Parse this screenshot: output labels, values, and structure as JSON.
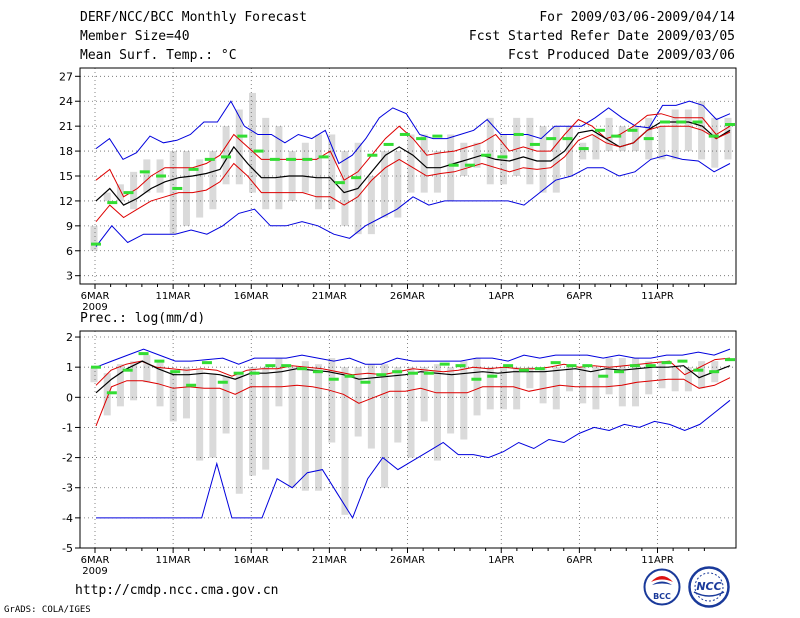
{
  "header": {
    "title": "DERF/NCC/BCC Monthly Forecast",
    "member_size": "Member Size=40",
    "top_var": "Mean Surf. Temp.: °C",
    "for_range": "For 2009/03/06-2009/04/14",
    "started": "Fcst Started Refer Date 2009/03/05",
    "produced": "Fcst Produced Date 2009/03/06"
  },
  "bottom_var": "Prec.: log(mm/d)",
  "footer": {
    "url": "http://cmdp.ncc.cma.gov.cn",
    "grads": "GrADS: COLA/IGES"
  },
  "logos": {
    "bcc": "BCC",
    "ncc": "NCC"
  },
  "colors": {
    "max_min": "#0000dd",
    "spread": "#dd0000",
    "mean": "#000000",
    "obs_bar": "#dadada",
    "marker": "#33dd33",
    "grid": "#666666"
  },
  "chart_data": [
    {
      "type": "line",
      "title": "Mean Surf. Temp.: °C",
      "ylim": [
        2,
        28
      ],
      "yticks": [
        3,
        6,
        9,
        12,
        15,
        18,
        21,
        24,
        27
      ],
      "xtick_labels": [
        "6MAR",
        "11MAR",
        "16MAR",
        "21MAR",
        "26MAR",
        "1APR",
        "6APR",
        "11APR"
      ],
      "xtick_days": [
        0,
        5,
        10,
        15,
        20,
        26,
        31,
        36
      ],
      "year_label": "2009",
      "days": 40,
      "series": [
        {
          "name": "max",
          "values": [
            18.3,
            19.5,
            17,
            17.8,
            19.8,
            19,
            19.3,
            20,
            21.5,
            21.5,
            24,
            21,
            20,
            20,
            19,
            20,
            19.5,
            20.5,
            16.5,
            17.5,
            19.5,
            22,
            23.2,
            22.5,
            20,
            19.5,
            19.5,
            20,
            20.5,
            21.8,
            20,
            20,
            20,
            19.5,
            21,
            21,
            21,
            22,
            23.2,
            22,
            21,
            20.8,
            23.5,
            23.5,
            24,
            23.5,
            21.8,
            22.5
          ]
        },
        {
          "name": "upper",
          "values": [
            14.5,
            15.8,
            12.5,
            13.5,
            15,
            16,
            16,
            16,
            16.5,
            17.5,
            20,
            18.5,
            17,
            17,
            17,
            17,
            17,
            18,
            14.5,
            15.5,
            17.5,
            19.5,
            21,
            19.5,
            17.5,
            17.8,
            18,
            18.5,
            19,
            20,
            18,
            18.5,
            18,
            18,
            20,
            21.8,
            21,
            19.5,
            20,
            21,
            22.3,
            22.5,
            22,
            22,
            22,
            20,
            21
          ]
        },
        {
          "name": "mean",
          "values": [
            12,
            13.5,
            11.5,
            12.3,
            13.5,
            14.3,
            14.8,
            15,
            15.3,
            15.8,
            18.5,
            16.5,
            14.8,
            14.8,
            15,
            15,
            14.8,
            14.8,
            13,
            13.5,
            15.5,
            17.5,
            18.5,
            17.5,
            16,
            16,
            16.5,
            17,
            17.5,
            17,
            16.8,
            17.3,
            16.8,
            16.8,
            18,
            20.2,
            20.5,
            19.5,
            18.5,
            19,
            20.5,
            21.5,
            21.5,
            21.5,
            21,
            19.5,
            20.5
          ]
        },
        {
          "name": "lower",
          "values": [
            9.5,
            11.5,
            10,
            11,
            12,
            12.5,
            13,
            13,
            13.3,
            14.3,
            16.5,
            15,
            13,
            13,
            13,
            13,
            12.5,
            12.5,
            11.5,
            12.5,
            14.5,
            16,
            17,
            16,
            15,
            15.3,
            15.5,
            16,
            16.5,
            16,
            15.5,
            16,
            15.8,
            16,
            17.3,
            19.3,
            20,
            19,
            18.5,
            19,
            20.5,
            21,
            21,
            21,
            20.5,
            19.5,
            20.3
          ]
        },
        {
          "name": "min",
          "values": [
            6.5,
            9,
            7,
            8,
            8,
            8,
            8.5,
            8,
            9,
            10.5,
            11,
            9,
            9,
            9.5,
            9,
            8,
            7.5,
            9,
            10,
            11,
            12.5,
            11.5,
            12,
            12,
            12,
            12,
            12,
            11.5,
            13,
            14.5,
            15,
            16,
            16,
            15,
            15.5,
            17,
            17.5,
            17,
            16.8,
            15.5,
            16.5
          ]
        },
        {
          "name": "bar_top",
          "values": [
            9,
            13,
            14,
            15.5,
            17,
            17,
            18,
            18,
            17,
            18,
            21,
            23,
            25,
            22,
            21,
            18,
            19,
            20,
            20,
            18,
            19,
            15,
            18,
            18,
            20,
            20,
            18,
            20,
            19,
            19,
            22,
            20,
            22,
            22,
            21,
            21,
            21,
            19,
            20,
            22,
            21,
            21,
            22,
            21,
            23,
            23,
            24,
            22,
            22
          ]
        },
        {
          "name": "bar_bot",
          "values": [
            6,
            12,
            12,
            11,
            13,
            13,
            8,
            9,
            10,
            11,
            14,
            14,
            13,
            11,
            11,
            12,
            13,
            11,
            11,
            9,
            8,
            8,
            10,
            10,
            13,
            13,
            13,
            12,
            15,
            16,
            14,
            14,
            15,
            14,
            13,
            13,
            15,
            17,
            17,
            18,
            18,
            18,
            17,
            17,
            17,
            18,
            17,
            16,
            17
          ]
        },
        {
          "name": "obs_marker",
          "values": [
            6.8,
            11.8,
            13,
            15.5,
            15,
            13.5,
            15.8,
            17,
            17.3,
            19.8,
            18,
            17,
            17,
            17,
            17.3,
            14.2,
            14.8,
            17.5,
            18.8,
            20,
            19.5,
            19.8,
            16.3,
            16.3,
            17.5,
            17.3,
            20,
            18.8,
            19.5,
            19.5,
            18.3,
            20.5,
            19.8,
            20.5,
            19.5,
            21.5,
            21.5,
            21.5,
            19.8,
            21.2
          ]
        }
      ]
    },
    {
      "type": "line",
      "title": "Prec.: log(mm/d)",
      "ylim": [
        -5,
        2.2
      ],
      "yticks": [
        -5,
        -4,
        -3,
        -2,
        -1,
        0,
        1,
        2
      ],
      "xtick_labels": [
        "6MAR",
        "11MAR",
        "16MAR",
        "21MAR",
        "26MAR",
        "1APR",
        "6APR",
        "11APR"
      ],
      "xtick_days": [
        0,
        5,
        10,
        15,
        20,
        26,
        31,
        36
      ],
      "year_label": "2009",
      "days": 40,
      "series": [
        {
          "name": "max",
          "values": [
            1,
            1.2,
            1.4,
            1.6,
            1.4,
            1.2,
            1.2,
            1.25,
            1.3,
            1.1,
            1.3,
            1.3,
            1.3,
            1.4,
            1.3,
            1.2,
            1.3,
            1.1,
            1.1,
            1.3,
            1.2,
            1.2,
            1.2,
            1.2,
            1.3,
            1.3,
            1.2,
            1.4,
            1.3,
            1.4,
            1.4,
            1.4,
            1.3,
            1.4,
            1.3,
            1.3,
            1.4,
            1.4,
            1.5,
            1.4,
            1.6
          ]
        },
        {
          "name": "upper",
          "values": [
            0.4,
            0.9,
            1.1,
            1.2,
            1,
            0.95,
            0.9,
            0.95,
            0.9,
            0.7,
            0.9,
            0.95,
            0.95,
            1.05,
            1,
            0.95,
            0.85,
            0.75,
            0.8,
            0.75,
            0.85,
            0.95,
            0.9,
            0.85,
            0.9,
            1,
            0.95,
            1,
            0.95,
            0.95,
            1,
            1.1,
            1,
            1.05,
            1,
            1.05,
            1.1,
            1.15,
            1.2,
            0.75,
            1,
            1.25,
            1.3
          ]
        },
        {
          "name": "mean",
          "values": [
            0.15,
            0.6,
            0.95,
            1.2,
            0.95,
            0.75,
            0.75,
            0.8,
            0.75,
            0.6,
            0.8,
            0.8,
            0.85,
            0.95,
            0.9,
            0.85,
            0.75,
            0.6,
            0.65,
            0.7,
            0.75,
            0.85,
            0.8,
            0.75,
            0.8,
            0.85,
            0.8,
            0.85,
            0.85,
            0.85,
            0.9,
            0.95,
            0.85,
            0.95,
            0.9,
            0.95,
            1,
            1,
            1.05,
            0.65,
            0.85,
            1.05
          ]
        },
        {
          "name": "lower",
          "values": [
            -0.95,
            0.35,
            0.55,
            0.55,
            0.45,
            0.3,
            0.35,
            0.3,
            0.3,
            0.1,
            0.35,
            0.35,
            0.35,
            0.4,
            0.35,
            0.25,
            0.1,
            -0.2,
            0,
            0.2,
            0.2,
            0.3,
            0.15,
            0.15,
            0.15,
            0.35,
            0.35,
            0.35,
            0.2,
            0.3,
            0.4,
            0.35,
            0.35,
            0.35,
            0.4,
            0.5,
            0.55,
            0.6,
            0.6,
            0.3,
            0.4,
            0.65
          ]
        },
        {
          "name": "min",
          "values": [
            -4,
            -4,
            -4,
            -4,
            -4,
            -4,
            -4,
            -4,
            -2.2,
            -4,
            -4,
            -4,
            -2.7,
            -3,
            -2.5,
            -2.4,
            -3.2,
            -4,
            -2.7,
            -2,
            -2.4,
            -2.1,
            -1.8,
            -1.5,
            -1.9,
            -1.9,
            -2,
            -1.8,
            -1.5,
            -1.7,
            -1.4,
            -1.5,
            -1.2,
            -1,
            -1.1,
            -0.9,
            -1,
            -0.8,
            -0.9,
            -1.1,
            -0.9,
            -0.5,
            -0.1
          ]
        },
        {
          "name": "bar_top",
          "values": [
            1,
            0.8,
            1.1,
            1.2,
            1.4,
            1.2,
            0.9,
            1,
            0.9,
            0.8,
            0.7,
            0.8,
            1,
            1,
            1.3,
            1,
            1.2,
            1.1,
            1.3,
            1,
            1,
            1.1,
            1.1,
            1,
            1,
            1,
            1.1,
            1,
            1.2,
            1.3,
            1,
            1,
            1,
            1,
            1,
            1,
            1.1,
            1,
            1,
            1.3,
            1.3,
            1.3,
            1.2,
            1.2,
            1,
            1,
            1.2,
            1.2,
            1.3
          ]
        },
        {
          "name": "bar_bot",
          "values": [
            0.5,
            -0.6,
            -0.3,
            -0.1,
            0.5,
            -0.3,
            -0.8,
            -0.7,
            -2.1,
            -2,
            -1.2,
            -3.2,
            -2.6,
            -2.4,
            -0.3,
            -3,
            -3.1,
            -3.1,
            -1.5,
            -3.9,
            -1.3,
            -1.7,
            -3,
            -1.5,
            -2,
            -0.8,
            -2.1,
            -1.2,
            -1.4,
            -0.6,
            -0.4,
            -0.4,
            -0.4,
            0.3,
            -0.2,
            -0.4,
            0.2,
            -0.2,
            -0.4,
            0.1,
            -0.3,
            -0.3,
            0.1,
            0.3,
            0.2,
            0.2,
            0.3,
            0.5
          ]
        },
        {
          "name": "obs_marker",
          "values": [
            1,
            0.15,
            0.9,
            1.45,
            1.2,
            0.85,
            0.4,
            1.15,
            0.5,
            0.8,
            0.8,
            1.05,
            1.05,
            0.95,
            0.85,
            0.6,
            0.7,
            0.5,
            0.75,
            0.85,
            0.8,
            0.8,
            1.1,
            1.05,
            0.6,
            0.7,
            1.05,
            0.9,
            0.95,
            1.15,
            1.05,
            1.05,
            0.7,
            0.85,
            1.05,
            1.05,
            1.15,
            1.2,
            0.9,
            0.85,
            1.25
          ]
        }
      ]
    }
  ]
}
